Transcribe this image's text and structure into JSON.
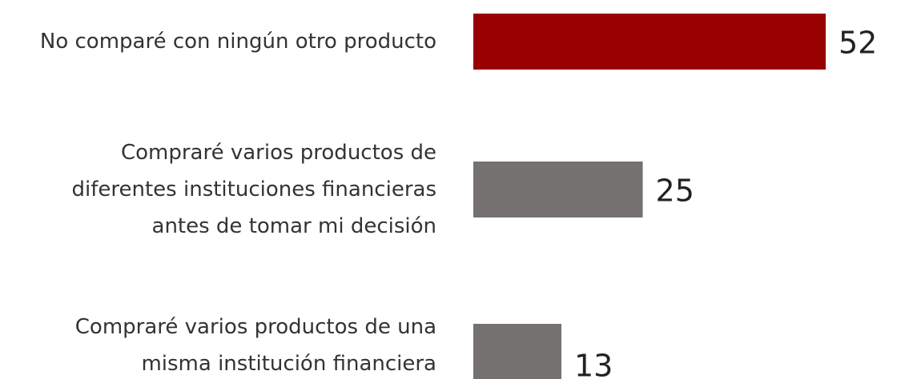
{
  "chart_data": {
    "type": "barh",
    "categories": [
      "No comparé con ningún otro producto",
      "Compraré varios productos de diferentes instituciones financieras antes de tomar mi decisión",
      "Compraré varios productos de una misma institución financiera"
    ],
    "values": [
      52,
      25,
      13
    ],
    "colors": [
      "#990000",
      "#767171",
      "#767171"
    ]
  }
}
